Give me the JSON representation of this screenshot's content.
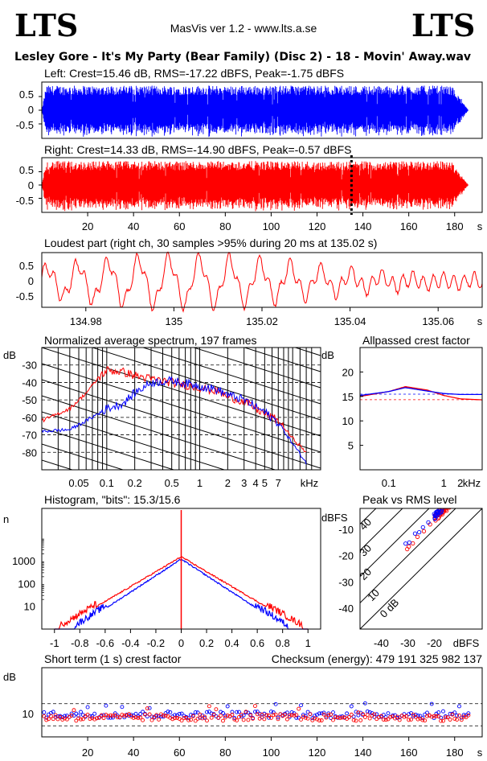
{
  "header": {
    "logo_left": "LTS",
    "logo_right": "LTS",
    "app": "MasVis ver 1.2 - www.lts.a.se",
    "file": "Lesley Gore - It's My Party (Bear Family) (Disc 2) - 18 - Movin' Away.wav"
  },
  "colors": {
    "left": "#0000ff",
    "right": "#ff0000",
    "bg": "#ffffff",
    "axis": "#000000"
  },
  "chart_data": [
    {
      "type": "line",
      "id": "waveform-left",
      "title": "Left: Crest=15.46 dB, RMS=-17.22 dBFS, Peak=-1.75 dBFS",
      "yticks": [
        "0.5",
        "0",
        "-0.5"
      ],
      "ylim": [
        -1,
        1
      ],
      "xlim": [
        0,
        192
      ],
      "series": [
        {
          "color": "#0000ff",
          "envelope": "full",
          "start": 0,
          "end": 186
        }
      ]
    },
    {
      "type": "line",
      "id": "waveform-right",
      "title": "Right: Crest=14.33 dB, RMS=-14.90 dBFS, Peak=-0.57 dBFS",
      "yticks": [
        "0.5",
        "0",
        "-0.5"
      ],
      "ylim": [
        -1,
        1
      ],
      "xlim": [
        0,
        192
      ],
      "xticks": [
        "20",
        "40",
        "60",
        "80",
        "100",
        "120",
        "140",
        "160",
        "180"
      ],
      "xunit": "s",
      "marker_x": 135.02,
      "series": [
        {
          "color": "#ff0000",
          "envelope": "full",
          "start": 0,
          "end": 186
        }
      ]
    },
    {
      "type": "line",
      "id": "loudest-part",
      "title": "Loudest part (right ch, 30 samples >95% during 20 ms at 135.02 s)",
      "yticks": [
        "0.5",
        "0",
        "-0.5"
      ],
      "ylim": [
        -1,
        1
      ],
      "xlim": [
        134.97,
        135.07
      ],
      "xticks": [
        "134.98",
        "135",
        "135.02",
        "135.04",
        "135.06"
      ],
      "xunit": "s",
      "series": [
        {
          "color": "#ff0000"
        }
      ]
    },
    {
      "type": "line",
      "id": "spectrum",
      "title": "Normalized average spectrum, 197 frames",
      "ylabel": "dB",
      "yticks": [
        "-30",
        "-40",
        "-50",
        "-60",
        "-70",
        "-80"
      ],
      "xticks": [
        "0.05",
        "0.1",
        "0.2",
        "0.5",
        "1",
        "2",
        "3",
        "4",
        "5",
        "7"
      ],
      "xunit": "kHz",
      "series": [
        {
          "color": "#ff0000",
          "points": [
            [
              0.02,
              -62
            ],
            [
              0.04,
              -55
            ],
            [
              0.06,
              -46
            ],
            [
              0.08,
              -38
            ],
            [
              0.1,
              -33
            ],
            [
              0.15,
              -34
            ],
            [
              0.2,
              -36
            ],
            [
              0.3,
              -38
            ],
            [
              0.5,
              -40
            ],
            [
              0.8,
              -42
            ],
            [
              1,
              -43
            ],
            [
              1.5,
              -45
            ],
            [
              2,
              -48
            ],
            [
              3,
              -51
            ],
            [
              4,
              -55
            ],
            [
              5,
              -58
            ],
            [
              7,
              -62
            ],
            [
              10,
              -72
            ],
            [
              14,
              -80
            ]
          ]
        },
        {
          "color": "#0000ff",
          "points": [
            [
              0.02,
              -68
            ],
            [
              0.04,
              -67
            ],
            [
              0.06,
              -62
            ],
            [
              0.08,
              -58
            ],
            [
              0.1,
              -55
            ],
            [
              0.15,
              -52
            ],
            [
              0.2,
              -46
            ],
            [
              0.3,
              -40
            ],
            [
              0.5,
              -39
            ],
            [
              0.8,
              -41
            ],
            [
              1,
              -42
            ],
            [
              1.5,
              -44
            ],
            [
              2,
              -47
            ],
            [
              3,
              -50
            ],
            [
              4,
              -54
            ],
            [
              5,
              -57
            ],
            [
              7,
              -63
            ],
            [
              10,
              -75
            ],
            [
              14,
              -86
            ]
          ]
        }
      ]
    },
    {
      "type": "line",
      "id": "allpass-crest",
      "title": "Allpassed crest factor",
      "ylabel": "dB",
      "yticks": [
        "20",
        "15",
        "10",
        "5"
      ],
      "xticks": [
        "0.1",
        "1",
        "2"
      ],
      "xunit": "kHz",
      "series": [
        {
          "color": "#ff0000",
          "points": [
            [
              0.03,
              15
            ],
            [
              0.1,
              16
            ],
            [
              0.2,
              17
            ],
            [
              0.5,
              16.3
            ],
            [
              1,
              15.2
            ],
            [
              2,
              14.5
            ],
            [
              5,
              14.3
            ]
          ]
        },
        {
          "color": "#0000ff",
          "points": [
            [
              0.03,
              15.2
            ],
            [
              0.1,
              16
            ],
            [
              0.2,
              16.8
            ],
            [
              0.5,
              16.1
            ],
            [
              1,
              15.6
            ],
            [
              2,
              15.4
            ],
            [
              5,
              15.4
            ]
          ]
        }
      ],
      "ref_lines": [
        15.46,
        14.33
      ]
    },
    {
      "type": "line",
      "id": "histogram",
      "title": "Histogram, \"bits\": 15.3/15.6",
      "ylabel": "n",
      "yticks": [
        "1000",
        "100",
        "10"
      ],
      "yscale": "log",
      "xticks": [
        "-1",
        "-0.8",
        "-0.6",
        "-0.4",
        "-0.2",
        "0",
        "0.2",
        "0.4",
        "0.6",
        "0.8",
        "1"
      ],
      "series": [
        {
          "color": "#ff0000"
        },
        {
          "color": "#0000ff"
        }
      ]
    },
    {
      "type": "scatter",
      "id": "peak-vs-rms",
      "title": "Peak vs RMS level",
      "ylabel": "dBFS",
      "yticks": [
        "-10",
        "-20",
        "-30",
        "-40"
      ],
      "xlabel": "dBFS",
      "xticks": [
        "-40",
        "-30",
        "-20"
      ],
      "diag_labels": [
        "40",
        "30",
        "20",
        "10",
        "0 dB"
      ],
      "series": [
        {
          "color": "#ff0000"
        },
        {
          "color": "#0000ff"
        }
      ]
    },
    {
      "type": "scatter",
      "id": "short-term-crest",
      "title": "Short term (1 s) crest factor",
      "ylabel": "dB",
      "yticks": [
        "10"
      ],
      "xticks": [
        "20",
        "40",
        "60",
        "80",
        "100",
        "120",
        "140",
        "160",
        "180"
      ],
      "xunit": "s",
      "series": [
        {
          "color": "#ff0000"
        },
        {
          "color": "#0000ff"
        }
      ]
    }
  ],
  "checksum": "Checksum (energy):   479 191 325 982 137"
}
